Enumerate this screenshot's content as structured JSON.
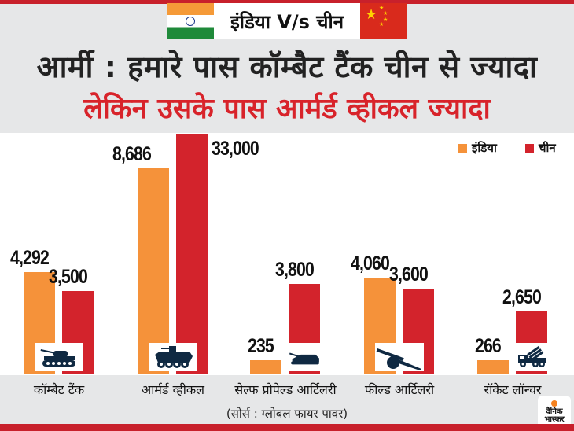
{
  "header": {
    "vs_title": "इंडिया V/s चीन",
    "headline": "आर्मी : हमारे पास कॉम्बैट टैंक चीन से ज्यादा",
    "subheadline": "लेकिन उसके पास आर्मर्ड व्हीकल ज्यादा"
  },
  "footer": {
    "source": "(सोर्स : ग्लोबल फायर पावर)",
    "logo_line1": "दैनिक",
    "logo_line2": "भास्कर"
  },
  "colors": {
    "india": "#f5923a",
    "china": "#d3232c",
    "title_red": "#d8232a",
    "bar_red": "#c8202b"
  },
  "chart_data": {
    "type": "bar",
    "title": "आर्मी : हमारे पास कॉम्बैट टैंक चीन से ज्यादा",
    "subtitle": "लेकिन उसके पास आर्मर्ड व्हीकल ज्यादा",
    "legend_position": "top-right",
    "grid": false,
    "categories": [
      "कॉम्बैट टैंक",
      "आर्मर्ड व्हीकल",
      "सेल्फ प्रोपेल्ड आर्टिलरी",
      "फील्ड आर्टिलरी",
      "रॉकेट लॉन्चर"
    ],
    "category_icons": [
      "tank-icon",
      "armored-vehicle-icon",
      "self-propelled-artillery-icon",
      "field-artillery-icon",
      "rocket-launcher-icon"
    ],
    "series": [
      {
        "name": "इंडिया",
        "color": "#f5923a",
        "values": [
          4292,
          8686,
          235,
          4060,
          266
        ],
        "labels": [
          "4,292",
          "8,686",
          "235",
          "4,060",
          "266"
        ]
      },
      {
        "name": "चीन",
        "color": "#d3232c",
        "values": [
          3500,
          33000,
          3800,
          3600,
          2650
        ],
        "labels": [
          "3,500",
          "33,000",
          "3,800",
          "3,600",
          "2,650"
        ]
      }
    ]
  }
}
